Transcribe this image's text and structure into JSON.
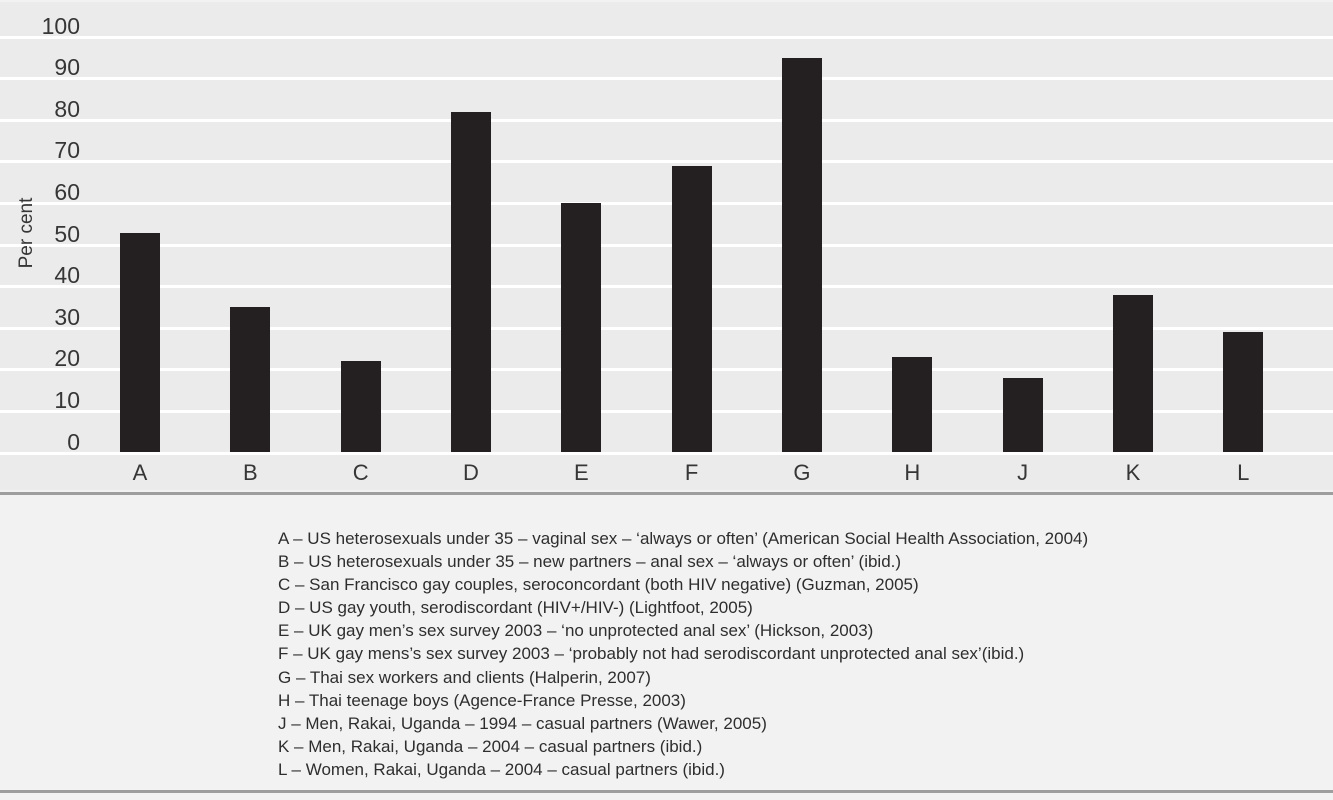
{
  "colors": {
    "bar": "#242021",
    "band": "#ebebeb",
    "gridline": "#ffffff",
    "rule": "#9e9e9e",
    "page_bg": "#f2f2f2",
    "axis_text": "#363636",
    "legend_text": "#2e2e2e"
  },
  "chart_data": {
    "type": "bar",
    "title": "",
    "xlabel": "",
    "ylabel": "Per cent",
    "categories": [
      "A",
      "B",
      "C",
      "D",
      "E",
      "F",
      "G",
      "H",
      "J",
      "K",
      "L"
    ],
    "values": [
      53,
      35,
      22,
      82,
      60,
      69,
      95,
      23,
      18,
      38,
      29
    ],
    "ylim": [
      0,
      100
    ],
    "yticks": [
      0,
      10,
      20,
      30,
      40,
      50,
      60,
      70,
      80,
      90,
      100
    ],
    "grid": "horizontal-bands",
    "legend_position": "below-chart",
    "legend_items": [
      "A – US heterosexuals under 35 – vaginal sex – ‘always or often’ (American Social Health Association, 2004)",
      "B – US heterosexuals under 35 – new partners – anal sex – ‘always or often’ (ibid.)",
      "C – San Francisco gay couples, seroconcordant (both HIV negative) (Guzman, 2005)",
      "D – US gay youth, serodiscordant (HIV+/HIV-) (Lightfoot, 2005)",
      "E – UK gay men’s sex survey 2003 – ‘no unprotected anal sex’ (Hickson, 2003)",
      "F – UK gay mens’s sex survey 2003 – ‘probably not had serodiscordant unprotected anal sex’(ibid.)",
      "G – Thai sex workers and clients (Halperin, 2007)",
      "H – Thai teenage boys (Agence-France Presse, 2003)",
      "J – Men, Rakai, Uganda – 1994 – casual partners (Wawer, 2005)",
      "K – Men, Rakai, Uganda – 2004 – casual partners (ibid.)",
      "L – Women, Rakai, Uganda – 2004 – casual partners (ibid.)"
    ]
  }
}
